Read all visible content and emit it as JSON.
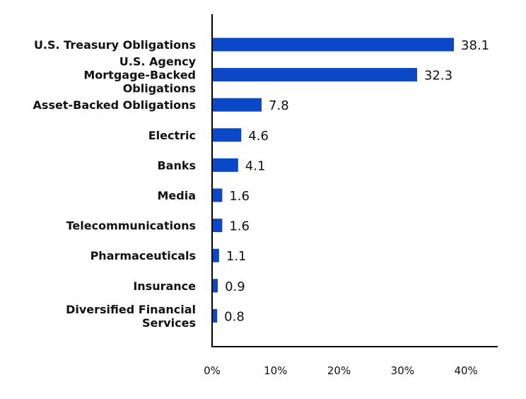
{
  "chart_data": {
    "type": "bar",
    "orientation": "horizontal",
    "categories": [
      "U.S. Treasury Obligations",
      "U.S. Agency Mortgage-Backed Obligations",
      "Asset-Backed Obligations",
      "Electric",
      "Banks",
      "Media",
      "Telecommunications",
      "Pharmaceuticals",
      "Insurance",
      "Diversified Financial Services"
    ],
    "category_label_lines": [
      [
        "U.S. Treasury Obligations"
      ],
      [
        "U.S. Agency",
        "Mortgage-Backed",
        "Obligations"
      ],
      [
        "Asset-Backed Obligations"
      ],
      [
        "Electric"
      ],
      [
        "Banks"
      ],
      [
        "Media"
      ],
      [
        "Telecommunications"
      ],
      [
        "Pharmaceuticals"
      ],
      [
        "Insurance"
      ],
      [
        "Diversified Financial",
        "Services"
      ]
    ],
    "values": [
      38.1,
      32.3,
      7.8,
      4.6,
      4.1,
      1.6,
      1.6,
      1.1,
      0.9,
      0.8
    ],
    "value_labels": [
      "38.1",
      "32.3",
      "7.8",
      "4.6",
      "4.1",
      "1.6",
      "1.6",
      "1.1",
      "0.9",
      "0.8"
    ],
    "xlim": [
      0,
      45
    ],
    "xticks": [
      0,
      10,
      20,
      30,
      40
    ],
    "xtick_labels": [
      "0%",
      "10%",
      "20%",
      "30%",
      "40%"
    ],
    "title": "",
    "xlabel": "",
    "ylabel": "",
    "grid": false,
    "bar_color": "#0a48c8"
  }
}
